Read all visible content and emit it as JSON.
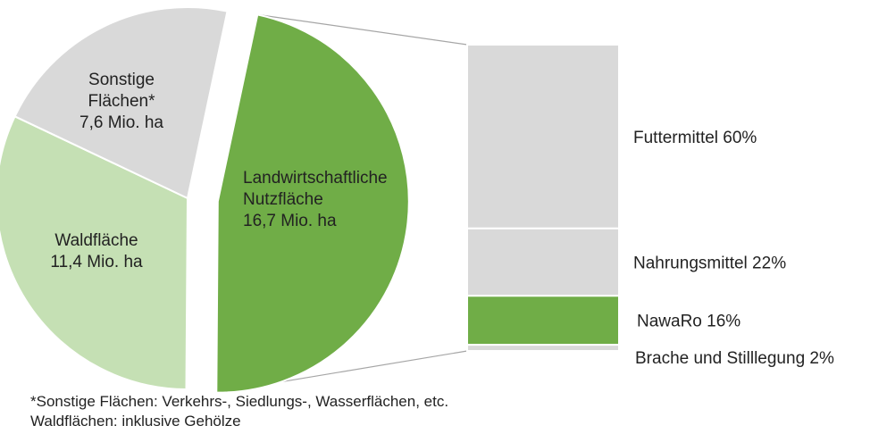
{
  "chart_data": [
    {
      "type": "pie",
      "slices": [
        {
          "label": [
            "Landwirtschaftliche",
            "Nutzfläche",
            "16,7 Mio. ha"
          ],
          "value": 16.7,
          "color": "#70ad47",
          "exploded": true
        },
        {
          "label": [
            "Waldfläche",
            "11,4 Mio. ha"
          ],
          "value": 11.4,
          "color": "#c5e0b4",
          "exploded": false
        },
        {
          "label": [
            "Sonstige",
            "Flächen*",
            "7,6 Mio. ha"
          ],
          "value": 7.6,
          "color": "#d9d9d9",
          "exploded": false
        }
      ]
    },
    {
      "type": "bar",
      "stacked": true,
      "segments": [
        {
          "label": "Futtermittel 60%",
          "value": 60,
          "color": "#d9d9d9"
        },
        {
          "label": "Nahrungsmittel 22%",
          "value": 22,
          "color": "#d9d9d9"
        },
        {
          "label": "NawaRo 16%",
          "value": 16,
          "color": "#70ad47"
        },
        {
          "label": "Brache und Stilllegung 2%",
          "value": 2,
          "color": "#d9d9d9"
        }
      ]
    }
  ],
  "footnotes": [
    "*Sonstige Flächen: Verkehrs-, Siedlungs-, Wasserflächen, etc.",
    "Waldflächen: inklusive Gehölze"
  ]
}
